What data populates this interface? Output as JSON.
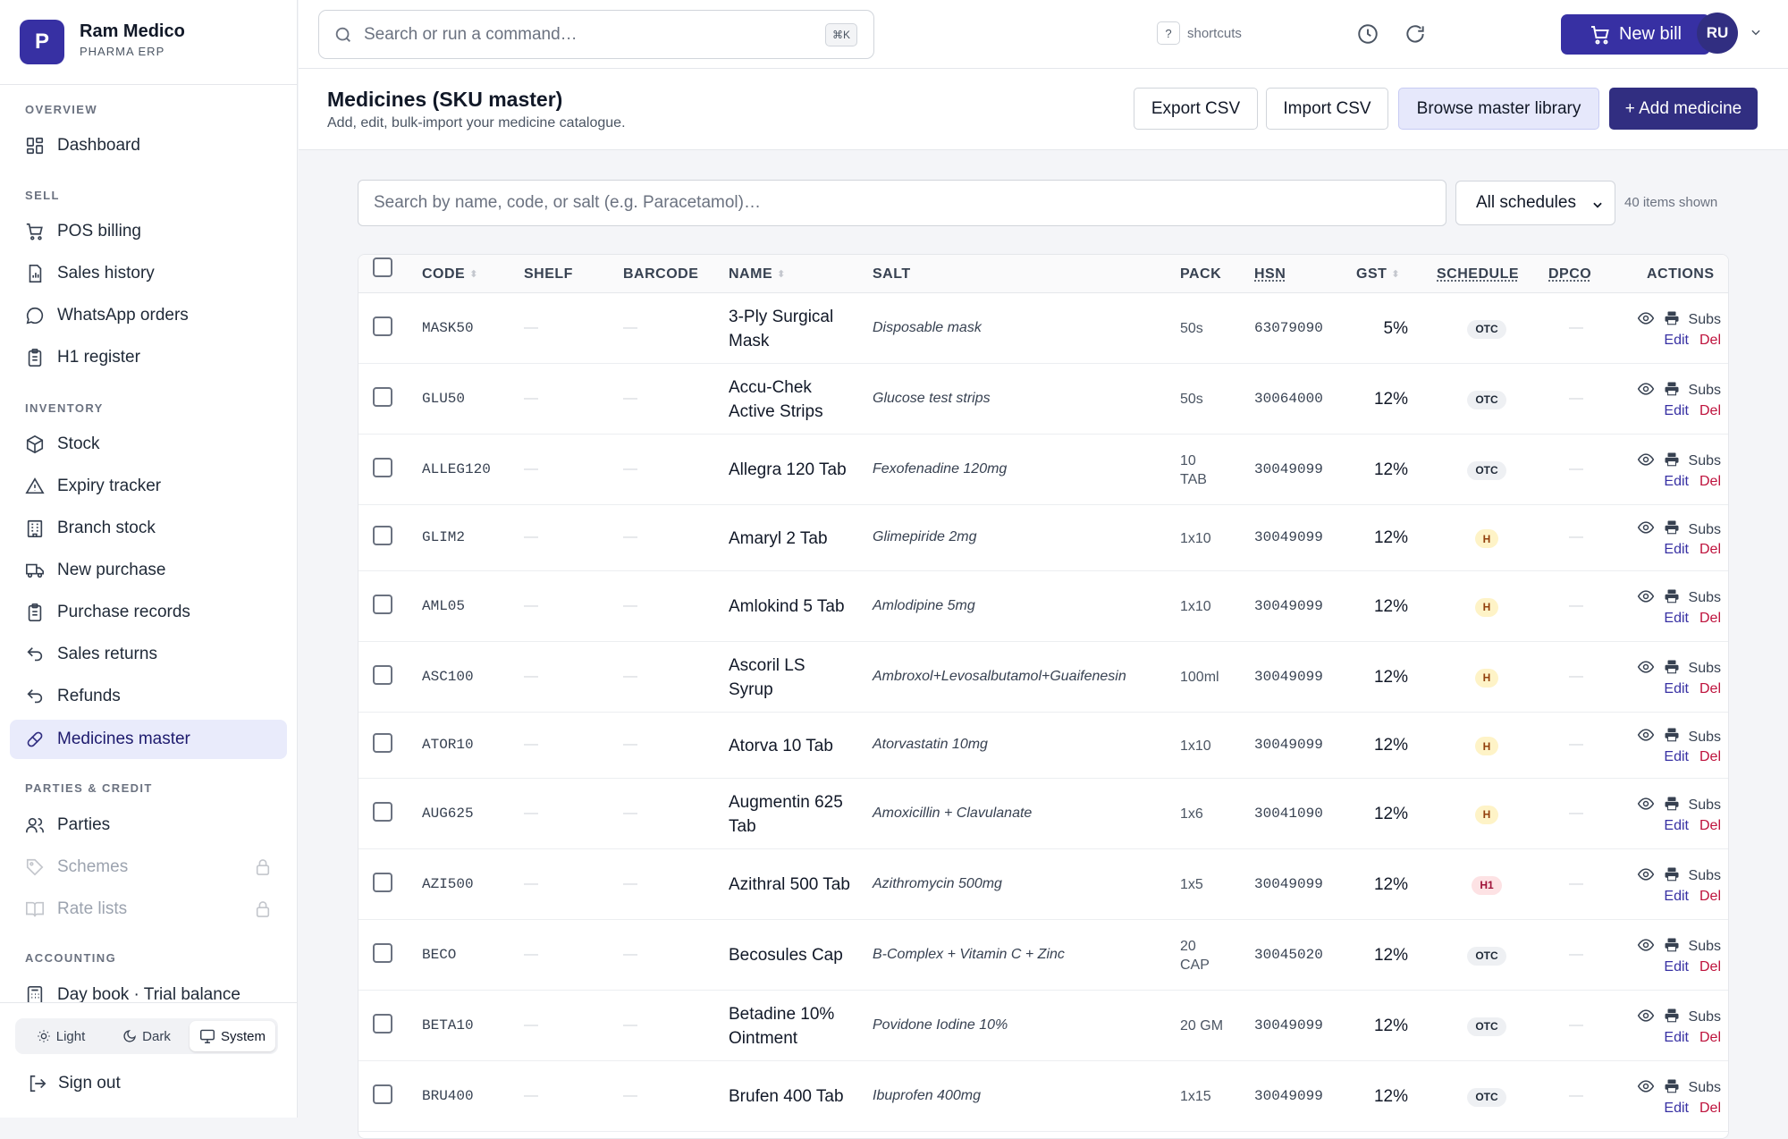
{
  "brand": {
    "logo_letter": "P",
    "name": "Ram Medico",
    "subtitle": "PHARMA ERP"
  },
  "sidebar": {
    "sections": [
      {
        "title": "OVERVIEW"
      },
      {
        "title": "SELL"
      },
      {
        "title": "INVENTORY"
      },
      {
        "title": "PARTIES & CREDIT"
      },
      {
        "title": "ACCOUNTING"
      }
    ],
    "items": [
      {
        "label": "Dashboard",
        "icon": "dashboard-icon"
      },
      {
        "label": "POS billing",
        "icon": "cart-icon"
      },
      {
        "label": "Sales history",
        "icon": "report-icon"
      },
      {
        "label": "WhatsApp orders",
        "icon": "chat-icon"
      },
      {
        "label": "H1 register",
        "icon": "clipboard-icon"
      },
      {
        "label": "Stock",
        "icon": "box-icon"
      },
      {
        "label": "Expiry tracker",
        "icon": "warning-icon"
      },
      {
        "label": "Branch stock",
        "icon": "building-icon"
      },
      {
        "label": "New purchase",
        "icon": "truck-icon"
      },
      {
        "label": "Purchase records",
        "icon": "clipboard-icon"
      },
      {
        "label": "Sales returns",
        "icon": "undo-icon"
      },
      {
        "label": "Refunds",
        "icon": "undo-icon"
      },
      {
        "label": "Medicines master",
        "icon": "pill-icon",
        "active": true
      },
      {
        "label": "Parties",
        "icon": "users-icon"
      },
      {
        "label": "Schemes",
        "icon": "tag-icon",
        "locked": true
      },
      {
        "label": "Rate lists",
        "icon": "book-icon",
        "locked": true
      },
      {
        "label": "Day book · Trial balance",
        "icon": "calculator-icon"
      }
    ],
    "theme": {
      "light": "Light",
      "dark": "Dark",
      "system": "System",
      "selected": "System"
    },
    "signout": "Sign out"
  },
  "topbar": {
    "search_placeholder": "Search or run a command…",
    "search_shortcut": "⌘K",
    "help_key": "?",
    "shortcuts_label": "shortcuts",
    "new_bill_label": "New bill",
    "avatar_initials": "RU"
  },
  "page": {
    "title": "Medicines (SKU master)",
    "subtitle": "Add, edit, bulk-import your medicine catalogue.",
    "buttons": {
      "export": "Export CSV",
      "import": "Import CSV",
      "browse": "Browse master library",
      "add": "+ Add medicine"
    }
  },
  "filters": {
    "search_placeholder": "Search by name, code, or salt (e.g. Paracetamol)…",
    "schedule_selected": "All schedules",
    "schedule_options": [
      "All schedules"
    ],
    "items_shown": "40 items shown"
  },
  "table": {
    "columns": {
      "code": "CODE",
      "shelf": "SHELF",
      "barcode": "BARCODE",
      "name": "NAME",
      "salt": "SALT",
      "pack": "PACK",
      "hsn": "HSN",
      "gst": "GST",
      "schedule": "SCHEDULE",
      "dpco": "DPCO",
      "actions": "ACTIONS"
    },
    "action_labels": {
      "subs": "Subs",
      "edit": "Edit",
      "del": "Del"
    },
    "empty": "—",
    "rows": [
      {
        "code": "MASK50",
        "name": "3-Ply Surgical Mask",
        "salt": "Disposable mask",
        "pack": "50s",
        "hsn": "63079090",
        "gst": "5%",
        "schedule": "OTC"
      },
      {
        "code": "GLU50",
        "name": "Accu-Chek Active Strips",
        "salt": "Glucose test strips",
        "pack": "50s",
        "hsn": "30064000",
        "gst": "12%",
        "schedule": "OTC"
      },
      {
        "code": "ALLEG120",
        "name": "Allegra 120 Tab",
        "salt": "Fexofenadine 120mg",
        "pack": "10 TAB",
        "hsn": "30049099",
        "gst": "12%",
        "schedule": "OTC"
      },
      {
        "code": "GLIM2",
        "name": "Amaryl 2 Tab",
        "salt": "Glimepiride 2mg",
        "pack": "1x10",
        "hsn": "30049099",
        "gst": "12%",
        "schedule": "H"
      },
      {
        "code": "AML05",
        "name": "Amlokind 5 Tab",
        "salt": "Amlodipine 5mg",
        "pack": "1x10",
        "hsn": "30049099",
        "gst": "12%",
        "schedule": "H"
      },
      {
        "code": "ASC100",
        "name": "Ascoril LS Syrup",
        "salt": "Ambroxol+Levosalbutamol+Guaifenesin",
        "pack": "100ml",
        "hsn": "30049099",
        "gst": "12%",
        "schedule": "H"
      },
      {
        "code": "ATOR10",
        "name": "Atorva 10 Tab",
        "salt": "Atorvastatin 10mg",
        "pack": "1x10",
        "hsn": "30049099",
        "gst": "12%",
        "schedule": "H"
      },
      {
        "code": "AUG625",
        "name": "Augmentin 625 Tab",
        "salt": "Amoxicillin + Clavulanate",
        "pack": "1x6",
        "hsn": "30041090",
        "gst": "12%",
        "schedule": "H"
      },
      {
        "code": "AZI500",
        "name": "Azithral 500 Tab",
        "salt": "Azithromycin 500mg",
        "pack": "1x5",
        "hsn": "30049099",
        "gst": "12%",
        "schedule": "H1"
      },
      {
        "code": "BECO",
        "name": "Becosules Cap",
        "salt": "B-Complex + Vitamin C + Zinc",
        "pack": "20 CAP",
        "hsn": "30045020",
        "gst": "12%",
        "schedule": "OTC"
      },
      {
        "code": "BETA10",
        "name": "Betadine 10% Ointment",
        "salt": "Povidone Iodine 10%",
        "pack": "20 GM",
        "hsn": "30049099",
        "gst": "12%",
        "schedule": "OTC"
      },
      {
        "code": "BRU400",
        "name": "Brufen 400 Tab",
        "salt": "Ibuprofen 400mg",
        "pack": "1x15",
        "hsn": "30049099",
        "gst": "12%",
        "schedule": "OTC"
      }
    ]
  }
}
